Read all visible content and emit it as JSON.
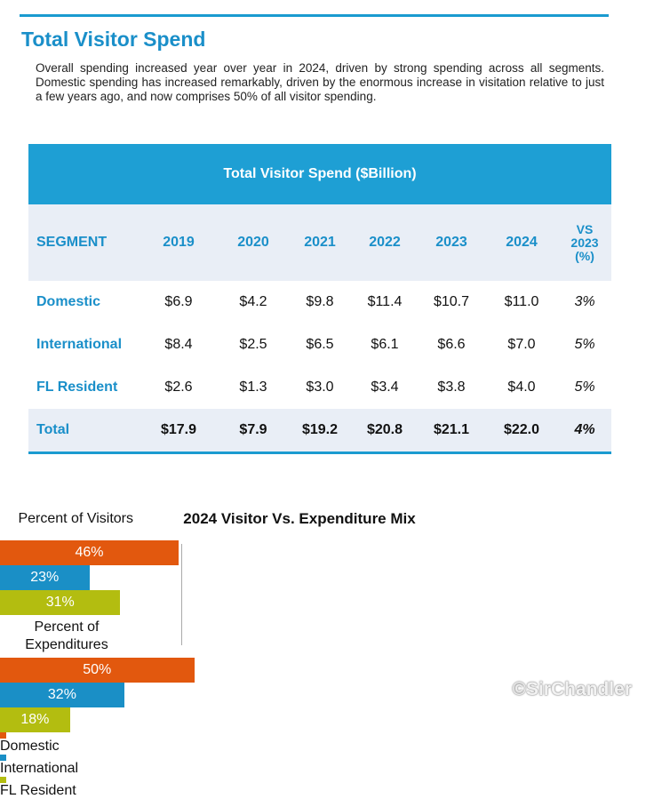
{
  "header": {
    "title": "Total Visitor Spend"
  },
  "intro": "Overall spending increased year over year in 2024, driven by strong spending across all segments. Domestic spending has increased remarkably, driven by the enormous increase in visitation relative to just a few years ago, and now comprises 50% of all visitor spending.",
  "table": {
    "title": "Total Visitor Spend ($Billion)",
    "header": [
      "SEGMENT",
      "2019",
      "2020",
      "2021",
      "2022",
      "2023",
      "2024",
      "VS 2023 (%)"
    ],
    "rows": [
      [
        "Domestic",
        "$6.9",
        "$4.2",
        "$9.8",
        "$11.4",
        "$10.7",
        "$11.0",
        "3%"
      ],
      [
        "International",
        "$8.4",
        "$2.5",
        "$6.5",
        "$6.1",
        "$6.6",
        "$7.0",
        "5%"
      ],
      [
        "FL Resident",
        "$2.6",
        "$1.3",
        "$3.0",
        "$3.4",
        "$3.8",
        "$4.0",
        "5%"
      ],
      [
        "Total",
        "$17.9",
        "$7.9",
        "$19.2",
        "$20.8",
        "$21.1",
        "$22.0",
        "4%"
      ]
    ]
  },
  "chart_data": {
    "type": "stacked_bar",
    "title": "2024 Visitor Vs. Expenditure Mix",
    "categories": [
      "Percent of Visitors",
      "Percent of Expenditures"
    ],
    "series": [
      {
        "name": "Domestic",
        "color": "#e2580e",
        "values": [
          46,
          50
        ],
        "value_labels": [
          "46%",
          "50%"
        ]
      },
      {
        "name": "International",
        "color": "#1a8fc6",
        "values": [
          23,
          32
        ],
        "value_labels": [
          "23%",
          "32%"
        ]
      },
      {
        "name": "FL Resident",
        "color": "#b3bd10",
        "values": [
          31,
          18
        ],
        "value_labels": [
          "31%",
          "18%"
        ]
      }
    ]
  },
  "watermark": "©SirChandler"
}
